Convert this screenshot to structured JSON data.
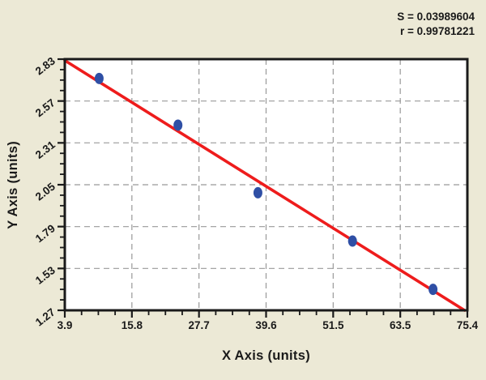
{
  "window": {
    "background": "#ECE9D6"
  },
  "stats": {
    "s_text": "S = 0.03989604",
    "r_text": "r = 0.99781221"
  },
  "chart_data": {
    "type": "scatter",
    "title": "",
    "xlabel": "X Axis (units)",
    "ylabel": "Y Axis (units)",
    "x_tick_labels": [
      "3.9",
      "15.8",
      "27.7",
      "39.6",
      "51.5",
      "63.5",
      "75.4"
    ],
    "y_tick_labels": [
      "1.27",
      "1.53",
      "1.79",
      "2.05",
      "2.31",
      "2.57",
      "2.83"
    ],
    "xlim": [
      3.9,
      75.4
    ],
    "ylim": [
      1.27,
      2.83
    ],
    "minor_divisions_per_major": 4,
    "grid": {
      "style": "dashed",
      "on_major_ticks": true,
      "edges_excluded": true
    },
    "legend": "none",
    "series": [
      {
        "name": "standards",
        "type": "scatter",
        "marker": "ellipse",
        "points": [
          [
            10.0,
            2.71
          ],
          [
            24.0,
            2.42
          ],
          [
            38.2,
            2.0
          ],
          [
            55.0,
            1.7
          ],
          [
            69.3,
            1.4
          ]
        ]
      },
      {
        "name": "regression-line",
        "type": "line",
        "points": [
          [
            3.9,
            2.822
          ],
          [
            74.9,
            1.27
          ]
        ]
      }
    ],
    "annotations": [
      "S = 0.03989604",
      "r = 0.99781221"
    ],
    "colors": {
      "background": "#ECE9D6",
      "plot_background": "#FFFFFF",
      "axis": "#1A1A1A",
      "grid": "#999999",
      "regression_line": "#EE1C1C",
      "point_fill": "#2F4FA5",
      "text": "#1A1A1A"
    }
  }
}
